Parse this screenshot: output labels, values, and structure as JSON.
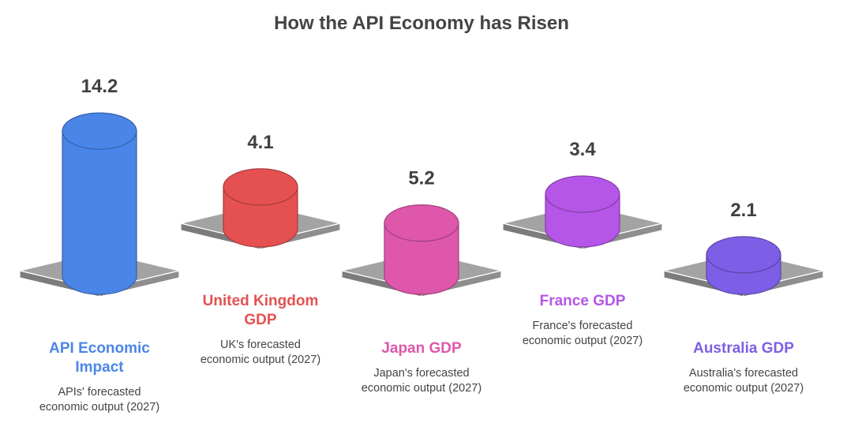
{
  "title": "How the API Economy has Risen",
  "chart_data": {
    "type": "bar",
    "title": "How the API Economy has Risen",
    "categories": [
      "API Economic Impact",
      "United Kingdom GDP",
      "Japan GDP",
      "France GDP",
      "Australia GDP"
    ],
    "values": [
      14.2,
      4.1,
      5.2,
      3.4,
      2.1
    ],
    "value_labels": [
      "14.2",
      "4.1",
      "5.2",
      "3.4",
      "2.1"
    ],
    "descriptions": [
      "APIs' forecasted economic output (2027)",
      "UK's forecasted economic output (2027)",
      "Japan's forecasted economic output (2027)",
      "France's forecasted economic output (2027)",
      "Australia's forecasted economic output (2027)"
    ],
    "colors": [
      "#4a86e8",
      "#e55151",
      "#de57ab",
      "#b556e8",
      "#7d5ee6"
    ],
    "xlabel": "",
    "ylabel": ""
  },
  "items": [
    {
      "name_lines": [
        "API Economic",
        "Impact"
      ],
      "desc_lines": [
        "APIs' forecasted",
        "economic output (2027)"
      ]
    },
    {
      "name_lines": [
        "United Kingdom",
        "GDP"
      ],
      "desc_lines": [
        "UK's forecasted",
        "economic output (2027)"
      ]
    },
    {
      "name_lines": [
        "Japan GDP"
      ],
      "desc_lines": [
        "Japan's forecasted",
        "economic output (2027)"
      ]
    },
    {
      "name_lines": [
        "France GDP"
      ],
      "desc_lines": [
        "France's forecasted",
        "economic output (2027)"
      ]
    },
    {
      "name_lines": [
        "Australia GDP"
      ],
      "desc_lines": [
        "Australia's forecasted",
        "economic output (2027)"
      ]
    }
  ]
}
